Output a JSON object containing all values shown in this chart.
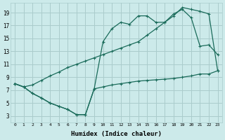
{
  "xlabel": "Humidex (Indice chaleur)",
  "bg_color": "#cceaea",
  "grid_color": "#aacccc",
  "line_color": "#1a6b5a",
  "xlim": [
    -0.5,
    23.5
  ],
  "ylim": [
    2,
    20.5
  ],
  "xticks": [
    0,
    1,
    2,
    3,
    4,
    5,
    6,
    7,
    8,
    9,
    10,
    11,
    12,
    13,
    14,
    15,
    16,
    17,
    18,
    19,
    20,
    21,
    22,
    23
  ],
  "yticks": [
    3,
    5,
    7,
    9,
    11,
    13,
    15,
    17,
    19
  ],
  "line1_x": [
    0,
    1,
    2,
    3,
    4,
    5,
    6,
    7,
    8,
    9,
    10,
    11,
    12,
    13,
    14,
    15,
    16,
    17,
    18,
    19,
    20,
    21,
    22,
    23
  ],
  "line1_y": [
    8.0,
    7.5,
    7.8,
    8.5,
    9.2,
    9.8,
    10.5,
    11.0,
    11.5,
    12.0,
    12.5,
    13.0,
    13.5,
    14.0,
    14.5,
    15.5,
    16.5,
    17.5,
    18.5,
    19.8,
    19.5,
    19.2,
    18.8,
    10.0
  ],
  "line2_x": [
    0,
    1,
    2,
    3,
    4,
    5,
    6,
    7,
    8,
    9,
    10,
    11,
    12,
    13,
    14,
    15,
    16,
    17,
    18,
    19,
    20,
    21,
    22,
    23
  ],
  "line2_y": [
    8.0,
    7.5,
    6.5,
    5.8,
    5.0,
    4.5,
    4.0,
    3.2,
    3.2,
    7.2,
    14.5,
    16.5,
    17.5,
    17.2,
    18.5,
    18.5,
    17.5,
    17.5,
    18.8,
    19.5,
    18.2,
    13.8,
    14.0,
    12.5
  ],
  "line3_x": [
    0,
    1,
    2,
    3,
    4,
    5,
    6,
    7,
    8,
    9,
    10,
    11,
    12,
    13,
    14,
    15,
    16,
    17,
    18,
    19,
    20,
    21,
    22,
    23
  ],
  "line3_y": [
    8.0,
    7.5,
    6.5,
    5.8,
    5.0,
    4.5,
    4.0,
    3.2,
    3.2,
    7.2,
    7.5,
    7.8,
    8.0,
    8.2,
    8.4,
    8.5,
    8.6,
    8.7,
    8.8,
    9.0,
    9.2,
    9.5,
    9.5,
    10.0
  ]
}
